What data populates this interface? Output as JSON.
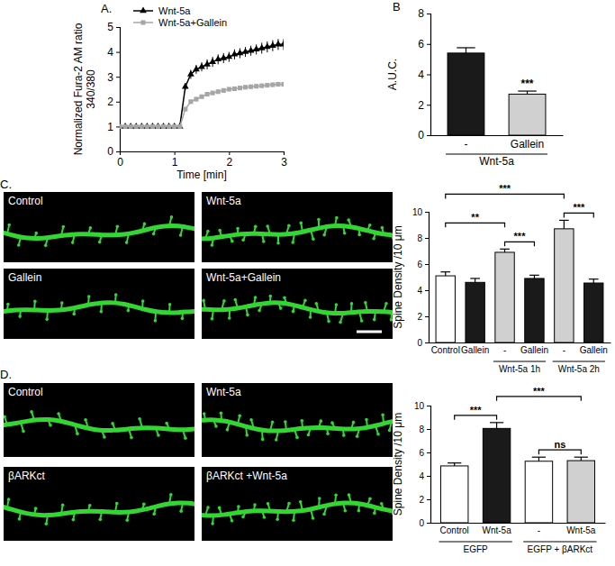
{
  "chart_data": [
    {
      "type": "line",
      "panel": "A.",
      "x_label": "Time [min]",
      "y_label": [
        "Normalized Fura-2 AM ratio",
        "340/380"
      ],
      "x": [
        0,
        0.1,
        0.2,
        0.3,
        0.4,
        0.5,
        0.6,
        0.7,
        0.8,
        0.9,
        1.0,
        1.1,
        1.2,
        1.3,
        1.4,
        1.5,
        1.6,
        1.7,
        1.8,
        1.9,
        2.0,
        2.1,
        2.2,
        2.3,
        2.4,
        2.5,
        2.6,
        2.7,
        2.8,
        2.9,
        3.0
      ],
      "series": [
        {
          "name": "Wnt-5a",
          "color": "#000000",
          "marker": "triangle",
          "line_style": "solid",
          "values": [
            1,
            1,
            1,
            1,
            1,
            1,
            1,
            1,
            1,
            1,
            1,
            1,
            2.6,
            3.1,
            3.3,
            3.4,
            3.5,
            3.6,
            3.7,
            3.75,
            3.8,
            3.9,
            3.95,
            4.0,
            4.05,
            4.1,
            4.15,
            4.2,
            4.25,
            4.3,
            4.3
          ],
          "errors": [
            0.02,
            0.02,
            0.02,
            0.02,
            0.02,
            0.02,
            0.02,
            0.02,
            0.02,
            0.02,
            0.02,
            0.02,
            0.15,
            0.18,
            0.18,
            0.18,
            0.2,
            0.2,
            0.2,
            0.2,
            0.2,
            0.2,
            0.2,
            0.2,
            0.2,
            0.2,
            0.22,
            0.22,
            0.22,
            0.22,
            0.22
          ]
        },
        {
          "name": "Wnt-5a+Gallein",
          "color": "#a6a6a6",
          "marker": "square",
          "line_style": "solid",
          "values": [
            1,
            1,
            1,
            1,
            1,
            1,
            1,
            1,
            1,
            1,
            1,
            1,
            1.7,
            2.0,
            2.1,
            2.2,
            2.3,
            2.35,
            2.4,
            2.45,
            2.5,
            2.52,
            2.55,
            2.58,
            2.6,
            2.62,
            2.64,
            2.66,
            2.68,
            2.7,
            2.7
          ],
          "errors": [
            0.02,
            0.02,
            0.02,
            0.02,
            0.02,
            0.02,
            0.02,
            0.02,
            0.02,
            0.02,
            0.02,
            0.02,
            0.08,
            0.08,
            0.08,
            0.08,
            0.08,
            0.08,
            0.08,
            0.08,
            0.08,
            0.08,
            0.08,
            0.08,
            0.08,
            0.08,
            0.08,
            0.08,
            0.08,
            0.08,
            0.08
          ]
        }
      ],
      "xlim": [
        0,
        3
      ],
      "xticks": [
        0,
        1,
        2,
        3
      ],
      "ylim": [
        0,
        5
      ],
      "yticks": [
        0,
        1,
        2,
        3,
        4,
        5
      ],
      "grid": false,
      "legend": "top-left"
    },
    {
      "type": "bar",
      "panel": "B",
      "y_label": "A.U.C.",
      "categories": [
        "-",
        "Gallein"
      ],
      "values": [
        5.4,
        2.7
      ],
      "errors": [
        0.35,
        0.2
      ],
      "colors": [
        "#1a1a1a",
        "#d0d0d0"
      ],
      "ylim": [
        0,
        8
      ],
      "yticks": [
        0,
        2,
        4,
        6,
        8
      ],
      "grid": false,
      "groups": [
        {
          "label": "Wnt-5a",
          "from": 0,
          "to": 1
        }
      ],
      "annotations": [
        {
          "text": "***",
          "from": 1,
          "to": 1
        }
      ]
    },
    {
      "type": "bar",
      "y_label": "Spine Density /10 μm",
      "categories": [
        "Control",
        "Gallein",
        "-",
        "Gallein",
        "-",
        "Gallein"
      ],
      "values": [
        5.1,
        4.6,
        6.9,
        4.9,
        8.7,
        4.55
      ],
      "errors": [
        0.3,
        0.3,
        0.25,
        0.25,
        0.65,
        0.3
      ],
      "colors": [
        "#ffffff",
        "#1a1a1a",
        "#d0d0d0",
        "#1a1a1a",
        "#d0d0d0",
        "#1a1a1a"
      ],
      "ylim": [
        0,
        10
      ],
      "yticks": [
        0,
        2,
        4,
        6,
        8,
        10
      ],
      "grid": false,
      "groups": [
        {
          "label": "Wnt-5a 1h",
          "from": 2,
          "to": 3
        },
        {
          "label": "Wnt-5a 2h",
          "from": 4,
          "to": 5
        }
      ],
      "annotations": [
        {
          "text": "**",
          "from": 0,
          "to": 2
        },
        {
          "text": "***",
          "from": 2,
          "to": 3
        },
        {
          "text": "***",
          "from": 0,
          "to": 4
        },
        {
          "text": "***",
          "from": 4,
          "to": 5
        }
      ]
    },
    {
      "type": "bar",
      "y_label": "Spine Density /10 μm",
      "categories": [
        "Control",
        "Wnt-5a",
        "-",
        "Wnt-5a"
      ],
      "values": [
        4.85,
        8.05,
        5.25,
        5.3
      ],
      "errors": [
        0.25,
        0.5,
        0.35,
        0.3
      ],
      "colors": [
        "#ffffff",
        "#1a1a1a",
        "#ffffff",
        "#d0d0d0"
      ],
      "ylim": [
        0,
        10
      ],
      "yticks": [
        0,
        2,
        4,
        6,
        8,
        10
      ],
      "grid": false,
      "groups": [
        {
          "label": "EGFP",
          "from": 0,
          "to": 1
        },
        {
          "label": "EGFP + βARKct",
          "from": 2,
          "to": 3
        }
      ],
      "annotations": [
        {
          "text": "***",
          "from": 0,
          "to": 1
        },
        {
          "text": "***",
          "from": 1,
          "to": 3
        },
        {
          "text": "ns",
          "from": 2,
          "to": 3
        }
      ]
    }
  ],
  "micrographs": [
    {
      "panel": "C.",
      "labels": [
        "Control",
        "Wnt-5a",
        "Gallein",
        "Wnt-5a+Gallein"
      ]
    },
    {
      "panel": "D.",
      "labels": [
        "Control",
        "Wnt-5a",
        "βARKct",
        "βARKct +Wnt-5a"
      ]
    }
  ]
}
